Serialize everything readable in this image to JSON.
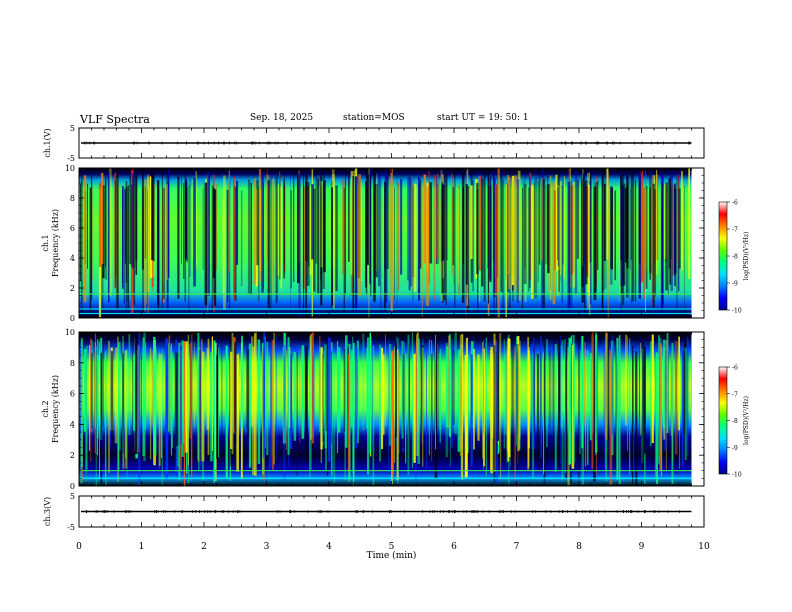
{
  "header": {
    "title": "VLF Spectra",
    "date": "Sep. 18, 2025",
    "station": "station=MOS",
    "start": "start UT =  19: 50: 1"
  },
  "chart_data": [
    {
      "type": "line",
      "id": "ch1-waveform",
      "ylabel": "ch.1(V)",
      "ylim": [
        -5,
        5
      ],
      "yticks": [
        "5",
        "-5"
      ],
      "baseline": 0,
      "series": [
        {
          "x_range": [
            0,
            9.8
          ],
          "level": 0
        }
      ]
    },
    {
      "type": "heatmap",
      "id": "ch1-spectrogram",
      "ylabel_top": "ch.1",
      "ylabel": "Frequency (kHz)",
      "ylim": [
        0,
        10
      ],
      "yticks": [
        "0",
        "2",
        "4",
        "6",
        "8",
        "10"
      ],
      "x_range": [
        0,
        9.8
      ],
      "dominant_band_khz": [
        0.5,
        9.2
      ],
      "line_khz": [
        0.3,
        0.6,
        1.6
      ],
      "colorbar": {
        "label": "log(PSD)(V²/Hz)",
        "range": [
          -10,
          -6
        ],
        "ticks": [
          "-6",
          "-7",
          "-8",
          "-9",
          "-10"
        ]
      }
    },
    {
      "type": "heatmap",
      "id": "ch2-spectrogram",
      "ylabel_top": "ch.2",
      "ylabel": "Frequency (kHz)",
      "ylim": [
        0,
        10
      ],
      "yticks": [
        "0",
        "2",
        "4",
        "6",
        "8",
        "10"
      ],
      "x_range": [
        0,
        9.8
      ],
      "dominant_band_khz": [
        4.0,
        9.0
      ],
      "line_khz": [
        0.5,
        1.0
      ],
      "colorbar": {
        "label": "log(PSD)(V²/Hz)",
        "range": [
          -10,
          -6
        ],
        "ticks": [
          "-6",
          "-7",
          "-8",
          "-9",
          "-10"
        ]
      }
    },
    {
      "type": "line",
      "id": "ch3-waveform",
      "ylabel": "ch.3(V)",
      "ylim": [
        -5,
        5
      ],
      "yticks": [
        "5",
        "-5"
      ],
      "baseline": 0,
      "series": [
        {
          "x_range": [
            0,
            9.8
          ],
          "level": 0
        }
      ]
    }
  ],
  "axis": {
    "xlabel": "Time (min)",
    "xlim": [
      0,
      10
    ],
    "xticks": [
      "0",
      "1",
      "2",
      "3",
      "4",
      "5",
      "6",
      "7",
      "8",
      "9",
      "10"
    ]
  },
  "colors": {
    "colormap": [
      "#000088",
      "#0000ff",
      "#0080ff",
      "#00e0ff",
      "#00ff80",
      "#60ff00",
      "#ffff00",
      "#ff8000",
      "#ff0000",
      "#ffffff"
    ],
    "trace": "#000000"
  }
}
